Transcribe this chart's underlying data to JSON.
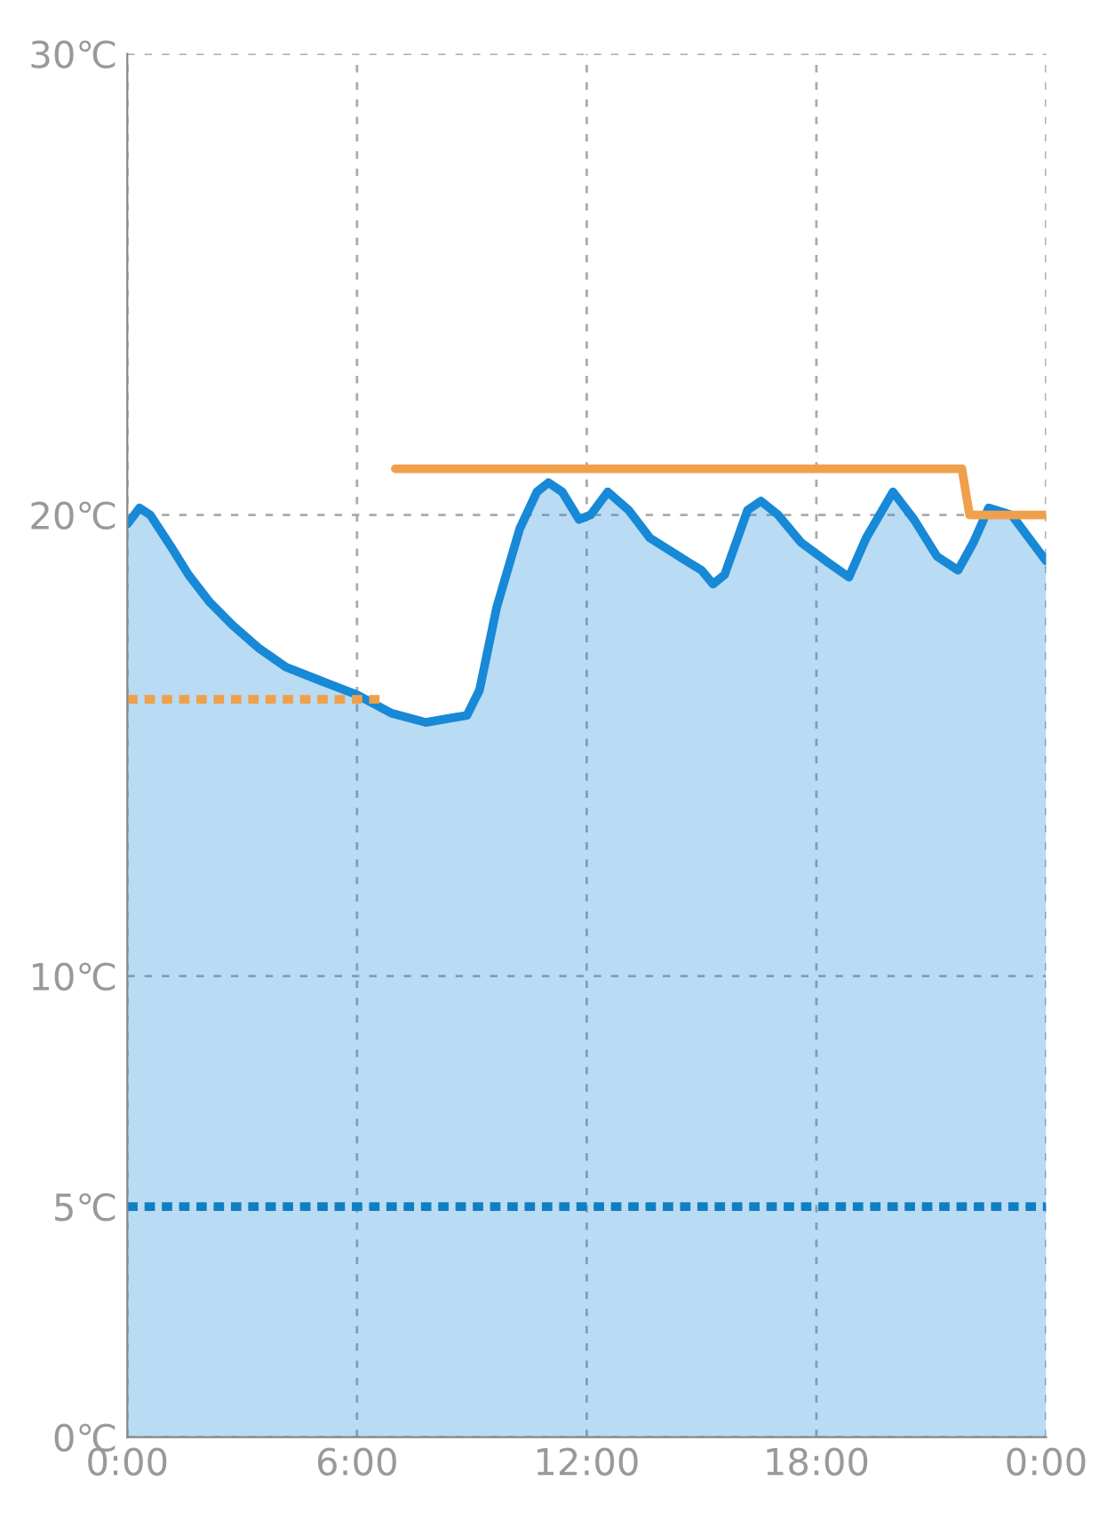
{
  "chart_data": {
    "type": "line",
    "xlim": [
      0,
      24
    ],
    "ylim": [
      0,
      30
    ],
    "xticks": [
      {
        "value": 0,
        "label": "0:00"
      },
      {
        "value": 6,
        "label": "6:00"
      },
      {
        "value": 12,
        "label": "12:00"
      },
      {
        "value": 18,
        "label": "18:00"
      },
      {
        "value": 24,
        "label": "0:00"
      }
    ],
    "yticks": [
      {
        "value": 0,
        "label": "0℃"
      },
      {
        "value": 5,
        "label": "5℃"
      },
      {
        "value": 10,
        "label": "10℃"
      },
      {
        "value": 20,
        "label": "20℃"
      },
      {
        "value": 30,
        "label": "30℃"
      }
    ],
    "grid": true,
    "legend": false,
    "series": [
      {
        "type": "area",
        "color": "#1789d6",
        "line_style": "solid",
        "x": [
          0,
          0.32,
          0.6,
          1.15,
          1.6,
          2.16,
          2.76,
          3.45,
          4.14,
          5.06,
          6.0,
          6.9,
          7.8,
          8.5,
          8.87,
          9.2,
          9.65,
          10.25,
          10.7,
          11.0,
          11.36,
          11.8,
          12.1,
          12.55,
          13.1,
          13.65,
          14.6,
          15.0,
          15.3,
          15.6,
          16.2,
          16.55,
          17.0,
          17.6,
          18.25,
          18.85,
          19.3,
          20.0,
          20.55,
          21.15,
          21.7,
          22.1,
          22.5,
          23.1,
          24
        ],
        "values": [
          19.8,
          20.15,
          20.0,
          19.3,
          18.7,
          18.1,
          17.6,
          17.1,
          16.7,
          16.4,
          16.1,
          15.7,
          15.5,
          15.6,
          15.65,
          16.2,
          18.0,
          19.7,
          20.5,
          20.7,
          20.5,
          19.9,
          20.0,
          20.5,
          20.1,
          19.5,
          19.0,
          18.8,
          18.5,
          18.7,
          20.1,
          20.3,
          20.0,
          19.4,
          19.0,
          18.65,
          19.5,
          20.5,
          19.9,
          19.1,
          18.8,
          19.4,
          20.15,
          20.0,
          19.0
        ]
      },
      {
        "color": "#f0a04b",
        "line_style": "dotted",
        "x": [
          0,
          6.6
        ],
        "values": [
          16,
          16
        ]
      },
      {
        "color": "#f0a04b",
        "line_style": "solid",
        "x": [
          7.0,
          21.8,
          22.0,
          24
        ],
        "values": [
          21,
          21,
          20,
          20
        ]
      }
    ],
    "ref_lines": [
      {
        "axis": "y",
        "value": 5,
        "color": "#0f7fc4",
        "line_style": "dotted"
      }
    ]
  }
}
